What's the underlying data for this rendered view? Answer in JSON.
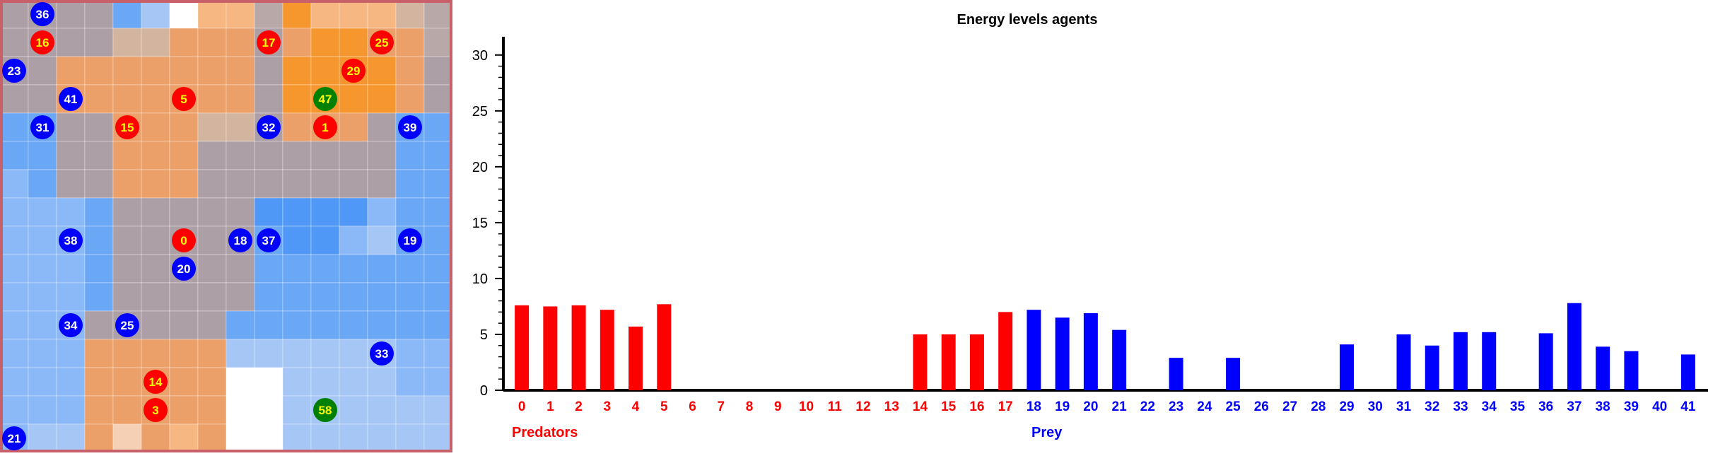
{
  "colors": {
    "predator": "#ff0000",
    "prey": "#0000ff",
    "special": "#008000",
    "label_yellow": "#ffff00",
    "label_white": "#ffffff",
    "border": "#c8606a"
  },
  "grid": {
    "rows": 16,
    "cols": 16,
    "palette": {
      "G": "#aca0a6",
      "g": "#b8a8a8",
      "O": "#eba06a",
      "o": "#f7b783",
      "R": "#f5962e",
      "P": "#d3b49f",
      "B": "#6aa7f5",
      "b": "#8bb8f6",
      "L": "#a6c6f6",
      "D": "#4f98f5",
      "W": "#ffffff",
      "H": "#f6d0b4"
    },
    "cells": [
      "GGGGBLWoogRoooPg",
      "GGGGPPOOOGORROOg",
      "GGOOOOOOOGRRRROG",
      "GGOOOOOOOGRRRROG",
      "BBGGOOOPPGOOOGBB",
      "BBGGOOOGGGGGGGBB",
      "bBGGOOOGGGGGGGBB",
      "bbbBGGGGGDDDDbBB",
      "bbbBGGGGGBDDbLBB",
      "bbbBGGGGGBBBBBBB",
      "bbbBGGGGGBBBBBBB",
      "bbbGGGGGBBBBBBBB",
      "bbbOOOOOLLLLLLbb",
      "bbbOOOOOWWLLLLbb",
      "bbbOOOOOWWLLLLLL",
      "bLLOHOoOWWLLLLLL"
    ],
    "agents": [
      {
        "id": "36",
        "type": "prey",
        "col": 1.5,
        "row": 0.5
      },
      {
        "id": "16",
        "type": "predator",
        "col": 1.5,
        "row": 1.5
      },
      {
        "id": "17",
        "type": "predator",
        "col": 9.5,
        "row": 1.5
      },
      {
        "id": "25",
        "type": "predator",
        "col": 13.5,
        "row": 1.5
      },
      {
        "id": "23",
        "type": "prey",
        "col": 0.5,
        "row": 2.5
      },
      {
        "id": "29",
        "type": "predator",
        "col": 12.5,
        "row": 2.5
      },
      {
        "id": "41",
        "type": "prey",
        "col": 2.5,
        "row": 3.5
      },
      {
        "id": "5",
        "type": "predator",
        "col": 6.5,
        "row": 3.5
      },
      {
        "id": "47",
        "type": "special",
        "col": 11.5,
        "row": 3.5
      },
      {
        "id": "31",
        "type": "prey",
        "col": 1.5,
        "row": 4.5
      },
      {
        "id": "15",
        "type": "predator",
        "col": 4.5,
        "row": 4.5
      },
      {
        "id": "32",
        "type": "prey",
        "col": 9.5,
        "row": 4.5
      },
      {
        "id": "1",
        "type": "predator",
        "col": 11.5,
        "row": 4.5
      },
      {
        "id": "39",
        "type": "prey",
        "col": 14.5,
        "row": 4.5
      },
      {
        "id": "38",
        "type": "prey",
        "col": 2.5,
        "row": 8.5
      },
      {
        "id": "0",
        "type": "predator",
        "col": 6.5,
        "row": 8.5
      },
      {
        "id": "18",
        "type": "prey",
        "col": 8.5,
        "row": 8.5
      },
      {
        "id": "37",
        "type": "prey",
        "col": 9.5,
        "row": 8.5
      },
      {
        "id": "19",
        "type": "prey",
        "col": 14.5,
        "row": 8.5
      },
      {
        "id": "20",
        "type": "prey",
        "col": 6.5,
        "row": 9.5
      },
      {
        "id": "34",
        "type": "prey",
        "col": 2.5,
        "row": 11.5
      },
      {
        "id": "25",
        "type": "prey",
        "col": 4.5,
        "row": 11.5
      },
      {
        "id": "33",
        "type": "prey",
        "col": 13.5,
        "row": 12.5
      },
      {
        "id": "14",
        "type": "predator",
        "col": 5.5,
        "row": 13.5
      },
      {
        "id": "3",
        "type": "predator",
        "col": 5.5,
        "row": 14.5
      },
      {
        "id": "58",
        "type": "special",
        "col": 11.5,
        "row": 14.5
      },
      {
        "id": "21",
        "type": "prey",
        "col": 0.5,
        "row": 15.5
      }
    ]
  },
  "chart_data": {
    "type": "bar",
    "title": "Energy levels agents",
    "ylim": [
      0,
      31
    ],
    "yticks": [
      0,
      5,
      10,
      15,
      20,
      25,
      30
    ],
    "categories": [
      "0",
      "1",
      "2",
      "3",
      "4",
      "5",
      "6",
      "7",
      "8",
      "9",
      "10",
      "11",
      "12",
      "13",
      "14",
      "15",
      "16",
      "17",
      "18",
      "19",
      "20",
      "21",
      "22",
      "23",
      "24",
      "25",
      "26",
      "27",
      "28",
      "29",
      "30",
      "31",
      "32",
      "33",
      "34",
      "35",
      "36",
      "37",
      "38",
      "39",
      "40",
      "41"
    ],
    "series": [
      {
        "name": "Predators",
        "values": [
          7.6,
          7.5,
          7.6,
          7.2,
          5.7,
          7.7,
          0,
          0,
          0,
          0,
          0,
          0,
          0,
          0,
          5.0,
          5.0,
          5.0,
          7.0,
          null,
          null,
          null,
          null,
          null,
          null,
          null,
          null,
          null,
          null,
          null,
          null,
          null,
          null,
          null,
          null,
          null,
          null,
          null,
          null,
          null,
          null,
          null,
          null
        ]
      },
      {
        "name": "Prey",
        "values": [
          null,
          null,
          null,
          null,
          null,
          null,
          null,
          null,
          null,
          null,
          null,
          null,
          null,
          null,
          null,
          null,
          null,
          null,
          7.2,
          6.5,
          6.9,
          5.4,
          0,
          2.9,
          0,
          2.9,
          0,
          0,
          0,
          4.1,
          0,
          5.0,
          4.0,
          5.2,
          5.2,
          0,
          5.1,
          7.8,
          3.9,
          3.5,
          0,
          3.2
        ]
      }
    ]
  }
}
